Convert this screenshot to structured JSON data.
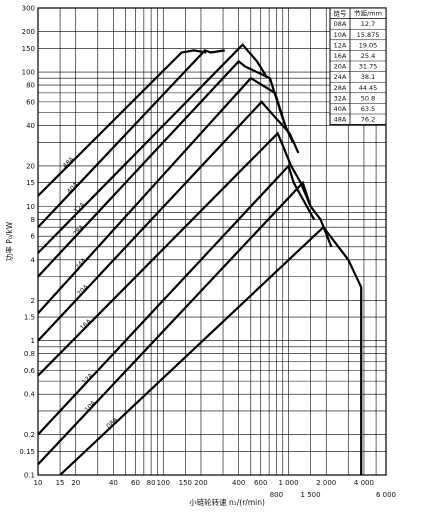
{
  "chart_data": {
    "type": "line",
    "title": "",
    "xlabel": "小链轮转速 n₁/(r/min)",
    "ylabel": "功率 P₀/kW",
    "xscale": "log",
    "yscale": "log",
    "xlim": [
      10,
      6000
    ],
    "ylim": [
      0.1,
      300
    ],
    "grid": true,
    "x_ticks": [
      "10",
      "15",
      "20",
      "40",
      "60",
      "80",
      "100",
      "150",
      "200",
      "400",
      "600",
      "800",
      "1 000",
      "1 500",
      "2 000",
      "4 000",
      "6 000"
    ],
    "y_ticks": [
      "0.1",
      "0.15",
      "0.2",
      "0.4",
      "0.6",
      "0.8",
      "1",
      "1.5",
      "2",
      "4",
      "6",
      "8",
      "10",
      "15",
      "20",
      "40",
      "60",
      "80",
      "100",
      "150",
      "200",
      "300"
    ],
    "series": [
      {
        "name": "48A",
        "points": [
          [
            10,
            12
          ],
          [
            140,
            140
          ],
          [
            175,
            145
          ],
          [
            220,
            140
          ]
        ]
      },
      {
        "name": "40A",
        "points": [
          [
            10,
            7
          ],
          [
            215,
            145
          ],
          [
            240,
            140
          ],
          [
            310,
            145
          ]
        ]
      },
      {
        "name": "32A",
        "points": [
          [
            10,
            4.5
          ],
          [
            430,
            160
          ],
          [
            560,
            120
          ],
          [
            680,
            90
          ]
        ]
      },
      {
        "name": "28A",
        "points": [
          [
            10,
            3
          ],
          [
            400,
            120
          ],
          [
            450,
            110
          ],
          [
            710,
            90
          ],
          [
            900,
            45
          ]
        ]
      },
      {
        "name": "24A",
        "points": [
          [
            10,
            1.6
          ],
          [
            500,
            90
          ],
          [
            780,
            70
          ],
          [
            940,
            40
          ],
          [
            1080,
            30
          ]
        ]
      },
      {
        "name": "20A",
        "points": [
          [
            10,
            1
          ],
          [
            610,
            60
          ],
          [
            800,
            45
          ],
          [
            1020,
            35
          ],
          [
            1200,
            25
          ]
        ]
      },
      {
        "name": "16A",
        "points": [
          [
            10,
            0.55
          ],
          [
            820,
            35
          ],
          [
            1050,
            20
          ],
          [
            1250,
            15
          ],
          [
            1500,
            10
          ]
        ]
      },
      {
        "name": "12A",
        "points": [
          [
            10,
            0.2
          ],
          [
            1000,
            20
          ],
          [
            1100,
            15
          ],
          [
            1400,
            10
          ],
          [
            1600,
            8
          ]
        ]
      },
      {
        "name": "10A",
        "points": [
          [
            10,
            0.12
          ],
          [
            1300,
            15
          ],
          [
            1500,
            10
          ],
          [
            1800,
            8
          ],
          [
            2200,
            5
          ]
        ]
      },
      {
        "name": "08A",
        "points": [
          [
            15,
            0.1
          ],
          [
            1900,
            7
          ],
          [
            2500,
            5
          ],
          [
            3000,
            4
          ],
          [
            3800,
            2.5
          ],
          [
            3800,
            0.1
          ]
        ]
      }
    ],
    "table": {
      "headers": [
        "链号",
        "节距/mm"
      ],
      "rows": [
        [
          "08A",
          "12.7"
        ],
        [
          "10A",
          "15.875"
        ],
        [
          "12A",
          "19.05"
        ],
        [
          "16A",
          "25.4"
        ],
        [
          "20A",
          "31.75"
        ],
        [
          "24A",
          "38.1"
        ],
        [
          "28A",
          "44.45"
        ],
        [
          "32A",
          "50.8"
        ],
        [
          "40A",
          "63.5"
        ],
        [
          "48A",
          "76.2"
        ]
      ]
    }
  }
}
